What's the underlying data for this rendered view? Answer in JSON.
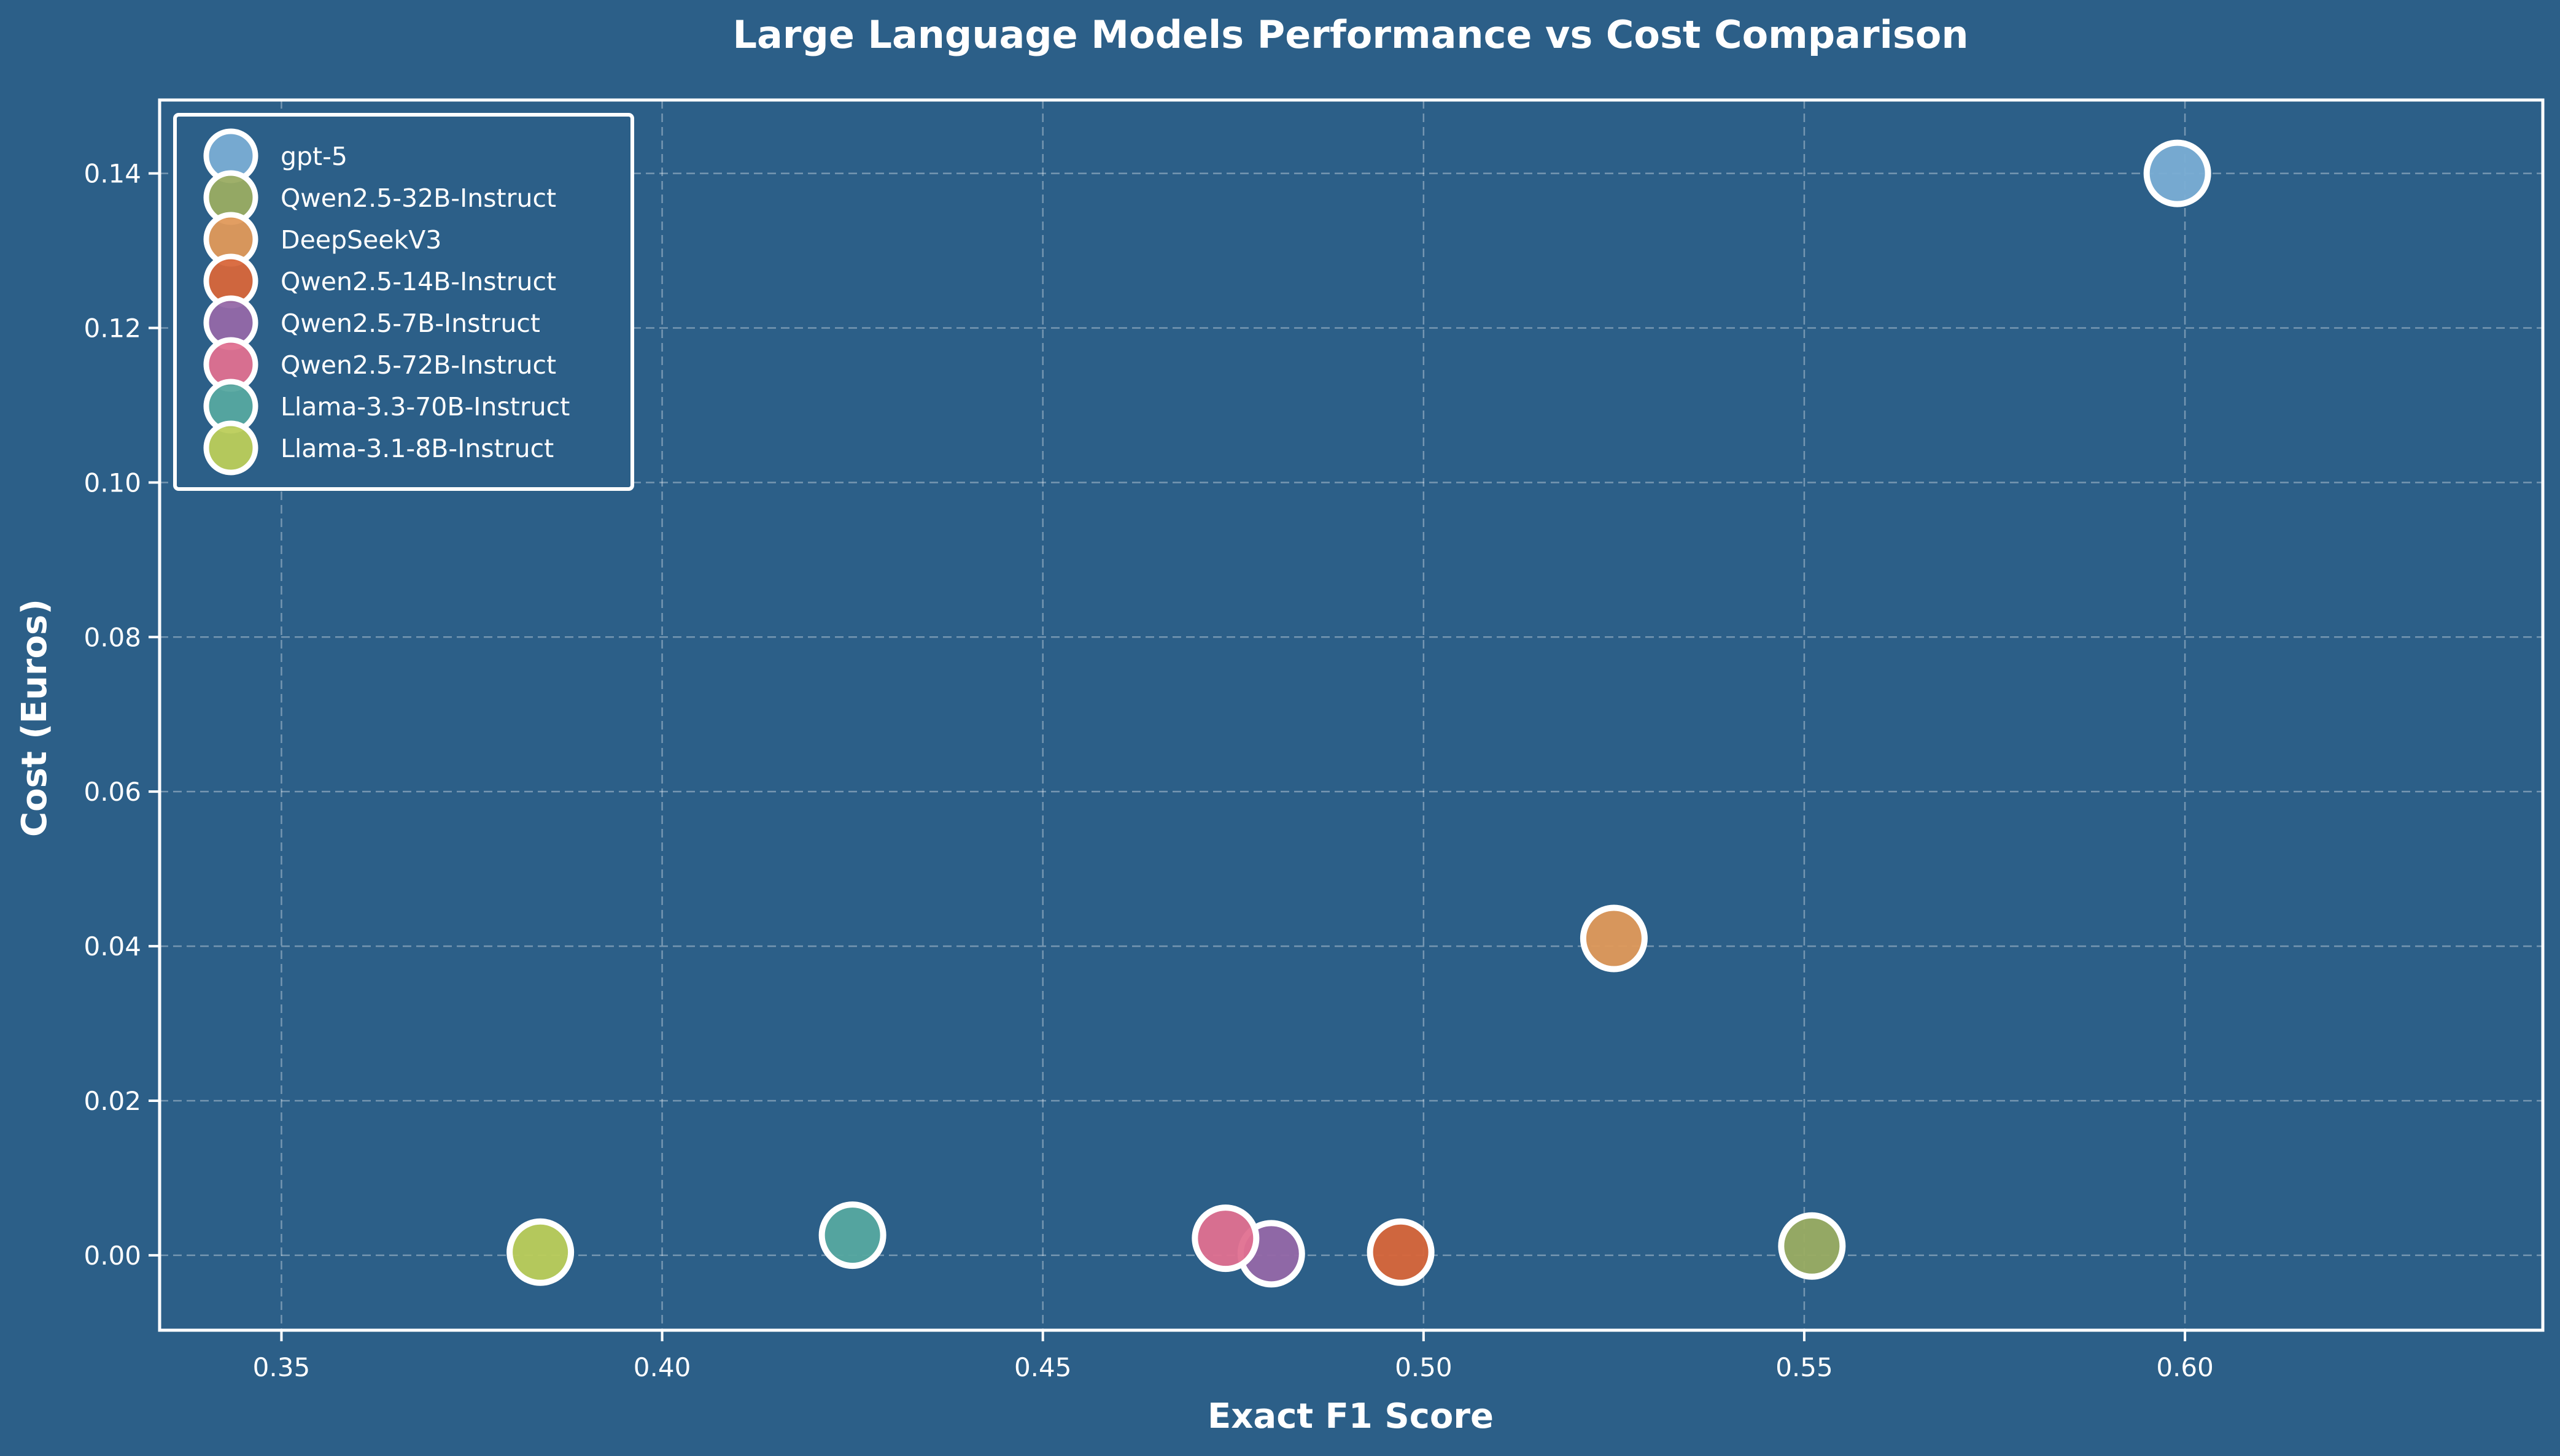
{
  "chart_data": {
    "type": "scatter",
    "title": "Large Language Models Performance vs Cost Comparison",
    "xlabel": "Exact F1 Score",
    "ylabel": "Cost (Euros)",
    "xlim": [
      0.334,
      0.647
    ],
    "ylim": [
      -0.0097,
      0.1495
    ],
    "xticks": [
      0.35,
      0.4,
      0.45,
      0.5,
      0.55,
      0.6
    ],
    "xtick_labels": [
      "0.35",
      "0.40",
      "0.45",
      "0.50",
      "0.55",
      "0.60"
    ],
    "yticks": [
      0.0,
      0.02,
      0.04,
      0.06,
      0.08,
      0.1,
      0.12,
      0.14
    ],
    "ytick_labels": [
      "0.00",
      "0.02",
      "0.04",
      "0.06",
      "0.08",
      "0.10",
      "0.12",
      "0.14"
    ],
    "grid": true,
    "legend_position": "top-left",
    "background_color": "#2c5f88",
    "series": [
      {
        "name": "gpt-5",
        "color": "#7aadd4",
        "x": 0.599,
        "y": 0.14
      },
      {
        "name": "Qwen2.5-32B-Instruct",
        "color": "#9aac62",
        "x": 0.551,
        "y": 0.0012
      },
      {
        "name": "DeepSeekV3",
        "color": "#e0995a",
        "x": 0.525,
        "y": 0.041
      },
      {
        "name": "Qwen2.5-14B-Instruct",
        "color": "#d8663a",
        "x": 0.497,
        "y": 0.0004
      },
      {
        "name": "Qwen2.5-7B-Instruct",
        "color": "#9568a8",
        "x": 0.48,
        "y": 0.0002
      },
      {
        "name": "Qwen2.5-72B-Instruct",
        "color": "#e07090",
        "x": 0.474,
        "y": 0.0022
      },
      {
        "name": "Llama-3.3-70B-Instruct",
        "color": "#56a8a0",
        "x": 0.425,
        "y": 0.0026
      },
      {
        "name": "Llama-3.1-8B-Instruct",
        "color": "#bccd5a",
        "x": 0.384,
        "y": 0.0004
      }
    ]
  }
}
